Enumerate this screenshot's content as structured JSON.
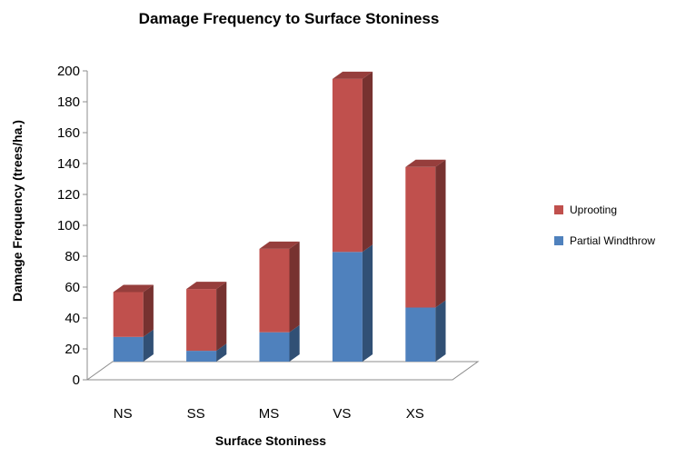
{
  "chart_data": {
    "type": "bar",
    "stacked": true,
    "three_d": true,
    "title": "Damage Frequency to Surface Stoniness",
    "xlabel": "Surface Stoniness",
    "ylabel": "Damage Frequency (trees/ha.)",
    "categories": [
      "NS",
      "SS",
      "MS",
      "VS",
      "XS"
    ],
    "series": [
      {
        "name": "Partial Windthrow",
        "values": [
          16,
          7,
          19,
          71,
          35
        ],
        "color": "#4f81bd"
      },
      {
        "name": "Uprooting",
        "values": [
          29,
          40,
          54,
          112,
          91
        ],
        "color": "#c0504d"
      }
    ],
    "ylim": [
      0,
      200
    ],
    "yticks": [
      0,
      20,
      40,
      60,
      80,
      100,
      120,
      140,
      160,
      180,
      200
    ],
    "grid": false,
    "legend_position": "right"
  }
}
